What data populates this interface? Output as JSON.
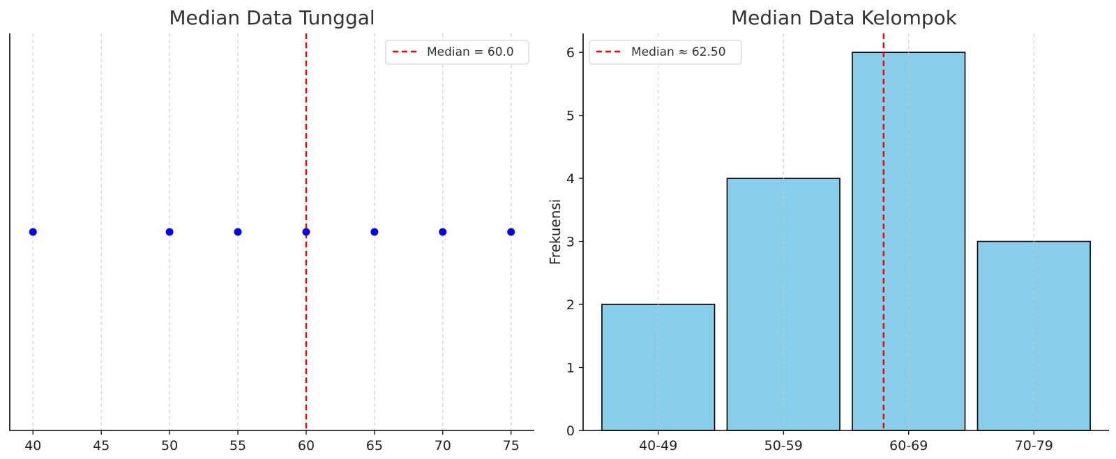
{
  "chart_data": [
    {
      "type": "scatter",
      "title": "Median Data Tunggal",
      "xlabel": "",
      "ylabel": "",
      "x_ticks": [
        40,
        45,
        50,
        55,
        60,
        65,
        70,
        75
      ],
      "xlim": [
        38.3,
        76.7
      ],
      "points": [
        40,
        50,
        55,
        60,
        65,
        70,
        75
      ],
      "point_color": "#0000ff",
      "median": {
        "value": 60,
        "label": "Median = 60.0",
        "color": "#ff0000"
      },
      "legend_position": "top-right",
      "grid": "x-dashed"
    },
    {
      "type": "bar",
      "title": "Median Data Kelompok",
      "xlabel": "",
      "ylabel": "Frekuensi",
      "categories": [
        "40-49",
        "50-59",
        "60-69",
        "70-79"
      ],
      "values": [
        2,
        4,
        6,
        3
      ],
      "ylim": [
        0,
        6.3
      ],
      "y_ticks": [
        0,
        1,
        2,
        3,
        4,
        5,
        6
      ],
      "bar_color": "#87ceeb",
      "median": {
        "value": 62.5,
        "label": "Median ≈ 62.50",
        "color": "#ff0000"
      },
      "legend_position": "top-left",
      "grid": "x-dashed"
    }
  ]
}
